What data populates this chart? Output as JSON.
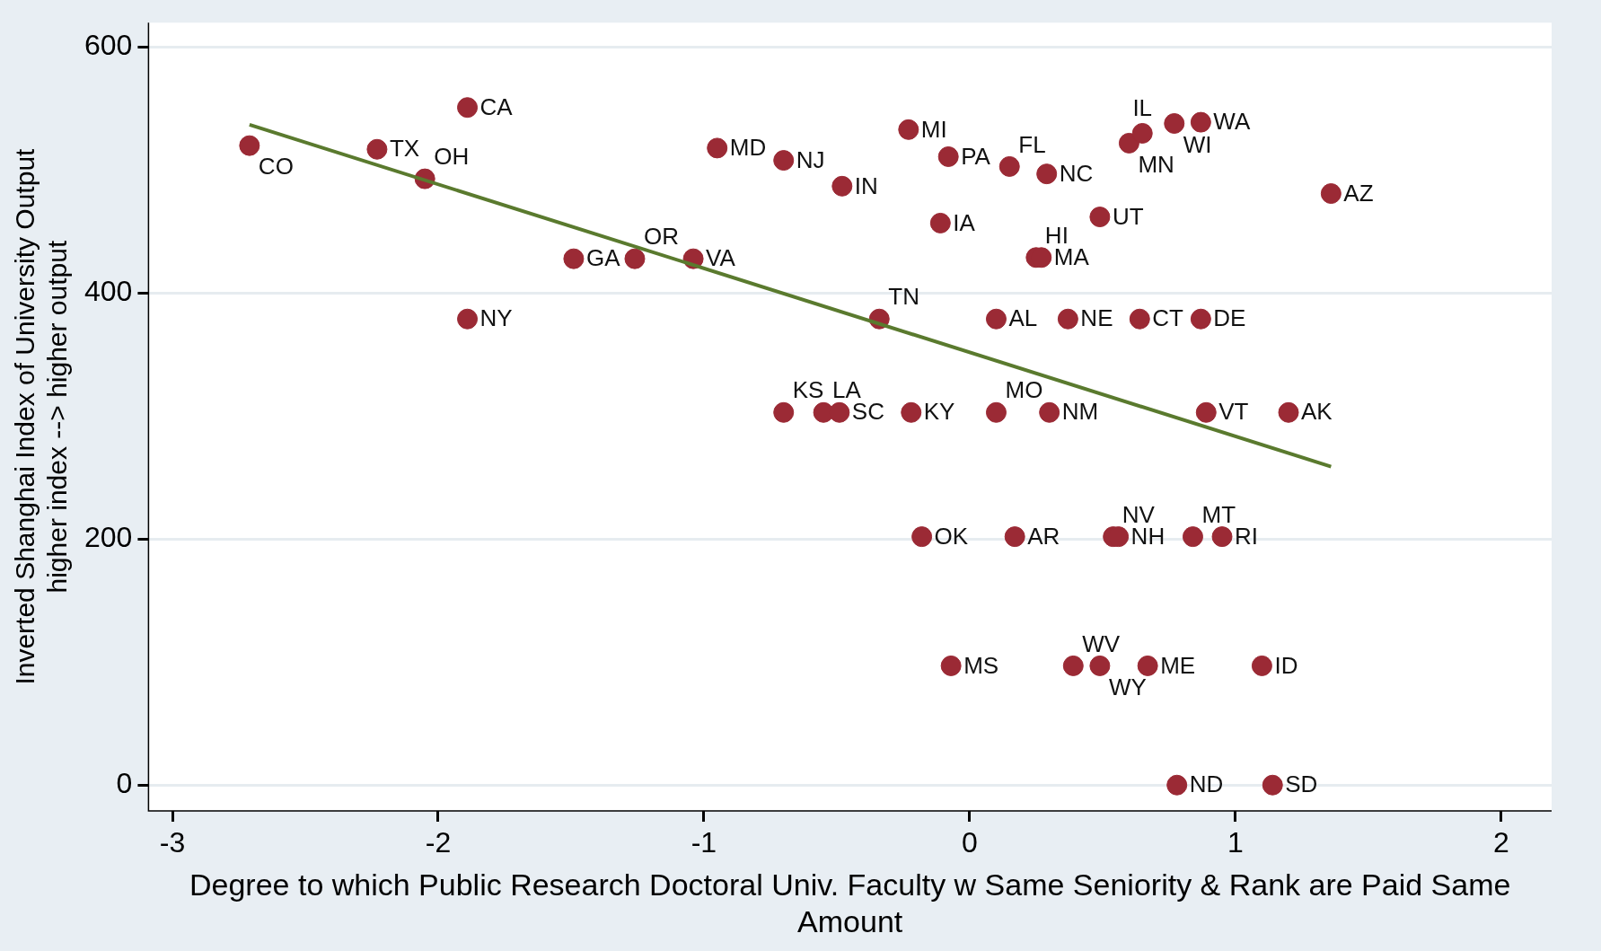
{
  "chart_data": {
    "type": "scatter",
    "xlabel": "Degree to which Public Research Doctoral Univ. Faculty w Same Seniority & Rank are Paid Same Amount",
    "ylabel": "Inverted Shanghai Index of University Output\nhigher index --> higher output",
    "xlim": [
      -3.09,
      2.19
    ],
    "xticks": [
      -3,
      -2,
      -1,
      0,
      1,
      2
    ],
    "ylim": [
      -21,
      620
    ],
    "yticks": [
      0,
      200,
      400,
      600
    ],
    "grid": "y",
    "legend": false,
    "marker": "circle",
    "series": [
      {
        "color": "#9b2a35",
        "x": [
          -2.71,
          -2.23,
          -1.89,
          -2.05,
          -0.95,
          -0.7,
          -0.48,
          -0.23,
          -0.08,
          0.15,
          0.29,
          -0.11,
          0.49,
          1.36,
          0.6,
          0.65,
          0.77,
          0.87,
          0.25,
          0.27,
          -1.49,
          -1.26,
          -1.04,
          -1.89,
          -0.34,
          0.1,
          0.37,
          0.64,
          0.87,
          -0.7,
          -0.55,
          -0.49,
          -0.22,
          0.1,
          0.3,
          0.89,
          1.2,
          -0.18,
          0.17,
          0.54,
          0.56,
          0.84,
          0.95,
          -0.07,
          0.39,
          0.49,
          0.67,
          1.1,
          0.78,
          1.14
        ],
        "values": [
          520,
          517,
          551,
          493,
          518,
          508,
          487,
          533,
          511,
          503,
          497,
          457,
          462,
          481,
          522,
          530,
          538,
          539,
          429,
          429,
          428,
          428,
          428,
          379,
          379,
          379,
          379,
          379,
          379,
          303,
          303,
          303,
          303,
          303,
          303,
          303,
          303,
          202,
          202,
          202,
          202,
          202,
          202,
          97,
          97,
          97,
          97,
          97,
          0,
          0
        ],
        "value_labels": [
          "CO",
          "TX",
          "CA",
          "OH",
          "MD",
          "NJ",
          "IN",
          "MI",
          "PA",
          "FL",
          "NC",
          "IA",
          "UT",
          "AZ",
          "MN",
          "IL",
          "WI",
          "WA",
          "HI",
          "MA",
          "GA",
          "OR",
          "VA",
          "NY",
          "TN",
          "AL",
          "NE",
          "CT",
          "DE",
          "KS",
          "LA",
          "SC",
          "KY",
          "MO",
          "NM",
          "VT",
          "AK",
          "OK",
          "AR",
          "NV",
          "NH",
          "MT",
          "RI",
          "MS",
          "WV",
          "WY",
          "ME",
          "ID",
          "ND",
          "SD"
        ]
      },
      {
        "type": "line",
        "color": "#5a7a2e",
        "x": [
          -2.71,
          1.36
        ],
        "values": [
          537,
          259
        ],
        "marker": "none"
      }
    ]
  }
}
